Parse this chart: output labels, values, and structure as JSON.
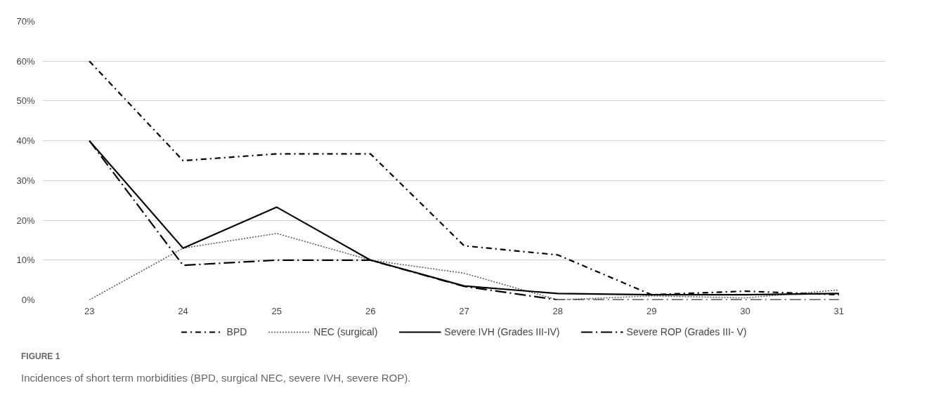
{
  "chart_data": {
    "type": "line",
    "categories": [
      "23",
      "24",
      "25",
      "26",
      "27",
      "28",
      "29",
      "30",
      "31"
    ],
    "series": [
      {
        "name": "BPD",
        "color": "#000000",
        "line_style": "dashdot",
        "values": [
          60,
          35,
          36.7,
          36.7,
          13.6,
          11.3,
          1.3,
          2.2,
          1.3
        ]
      },
      {
        "name": "NEC (surgical)",
        "color": "#555555",
        "line_style": "dotted",
        "values": [
          0,
          13,
          16.7,
          10,
          6.7,
          0,
          1,
          0.5,
          2.5
        ]
      },
      {
        "name": "Severe IVH (Grades III-IV)",
        "color": "#000000",
        "line_style": "solid",
        "values": [
          40,
          13,
          23.3,
          10,
          3.5,
          1.6,
          1.3,
          1.3,
          1.6
        ]
      },
      {
        "name": "Severe ROP (Grades III- V)",
        "color": "#000000",
        "line_style": "longdashdot",
        "values": [
          40,
          8.7,
          10,
          10,
          3.4,
          0,
          0,
          0,
          0
        ]
      }
    ],
    "ylim": [
      0,
      70
    ],
    "yticks": [
      {
        "value": 0,
        "label": "0%"
      },
      {
        "value": 10,
        "label": "10%"
      },
      {
        "value": 20,
        "label": "20%"
      },
      {
        "value": 30,
        "label": "30%"
      },
      {
        "value": 40,
        "label": "40%"
      },
      {
        "value": 50,
        "label": "50%"
      },
      {
        "value": 60,
        "label": "60%"
      },
      {
        "value": 70,
        "label": "70%"
      }
    ],
    "grid": "y",
    "legend": "bottom",
    "marker": "none",
    "annotations": [
      "FIGURE 1",
      "Incidences of short term morbidities (BPD, surgical NEC, severe IVH, severe ROP)."
    ]
  }
}
